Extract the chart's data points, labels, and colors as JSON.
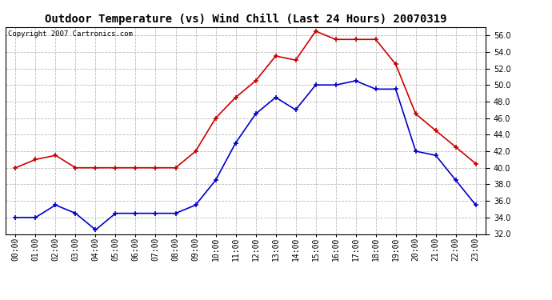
{
  "title": "Outdoor Temperature (vs) Wind Chill (Last 24 Hours) 20070319",
  "copyright": "Copyright 2007 Cartronics.com",
  "hours": [
    "00:00",
    "01:00",
    "02:00",
    "03:00",
    "04:00",
    "05:00",
    "06:00",
    "07:00",
    "08:00",
    "09:00",
    "10:00",
    "11:00",
    "12:00",
    "13:00",
    "14:00",
    "15:00",
    "16:00",
    "17:00",
    "18:00",
    "19:00",
    "20:00",
    "21:00",
    "22:00",
    "23:00"
  ],
  "outdoor_temp": [
    40.0,
    41.0,
    41.5,
    40.0,
    40.0,
    40.0,
    40.0,
    40.0,
    40.0,
    42.0,
    46.0,
    48.5,
    50.5,
    53.5,
    53.0,
    56.5,
    55.5,
    55.5,
    55.5,
    52.5,
    46.5,
    44.5,
    42.5,
    40.5
  ],
  "wind_chill": [
    34.0,
    34.0,
    35.5,
    34.5,
    32.5,
    34.5,
    34.5,
    34.5,
    34.5,
    35.5,
    38.5,
    43.0,
    46.5,
    48.5,
    47.0,
    50.0,
    50.0,
    50.5,
    49.5,
    49.5,
    42.0,
    41.5,
    38.5,
    35.5
  ],
  "temp_color": "#cc0000",
  "chill_color": "#0000cc",
  "ylim": [
    32.0,
    57.0
  ],
  "yticks": [
    32.0,
    34.0,
    36.0,
    38.0,
    40.0,
    42.0,
    44.0,
    46.0,
    48.0,
    50.0,
    52.0,
    54.0,
    56.0
  ],
  "bg_color": "#ffffff",
  "plot_bg_color": "#ffffff",
  "grid_color": "#bbbbbb",
  "marker": "+",
  "marker_size": 5,
  "linewidth": 1.2,
  "title_fontsize": 10,
  "tick_fontsize": 7,
  "copyright_fontsize": 6.5
}
